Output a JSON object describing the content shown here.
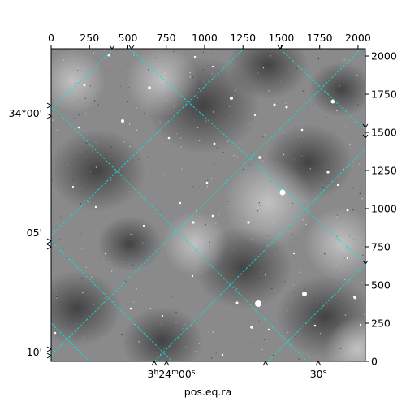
{
  "chart_data": {
    "type": "image",
    "xlabel": "pos.eq.ra",
    "ylabel": "",
    "pixel_axes": {
      "x_ticks": [
        0,
        250,
        500,
        750,
        1000,
        1250,
        1500,
        1750,
        2000
      ],
      "y_ticks": [
        0,
        250,
        500,
        750,
        1000,
        1250,
        1500,
        1750,
        2000
      ],
      "x_range": [
        0,
        2048
      ],
      "y_range": [
        0,
        2048
      ]
    },
    "wcs_ticks": {
      "ra_labels": [
        "3h24m00s",
        "30s"
      ],
      "dec_labels": [
        "34°00'",
        "05'",
        "10'"
      ]
    },
    "grid": true,
    "grid_color": "#00e5e5",
    "image_style": "grayscale star field"
  }
}
